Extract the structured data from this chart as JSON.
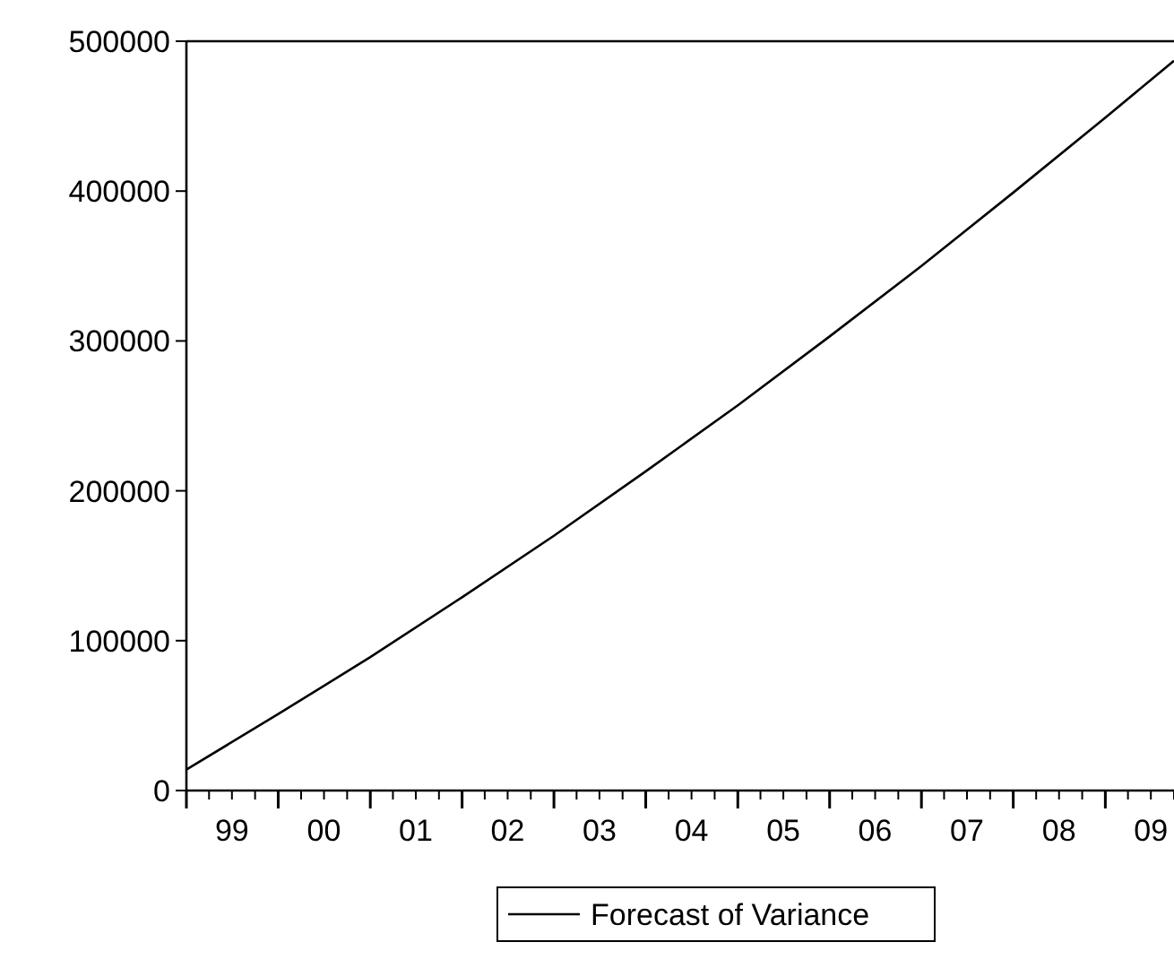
{
  "chart_data": {
    "type": "line",
    "x": [
      "1999-01",
      "2000-01",
      "2001-01",
      "2002-01",
      "2003-01",
      "2004-01",
      "2005-01",
      "2006-01",
      "2007-01",
      "2008-01",
      "2009-01",
      "2009-10"
    ],
    "series": [
      {
        "name": "Forecast of Variance",
        "color": "#000000",
        "values": [
          14000,
          51000,
          89000,
          129000,
          170000,
          213000,
          257000,
          303000,
          350000,
          399000,
          449000,
          487000
        ]
      }
    ],
    "xlim": [
      "1999-01",
      "2009-10"
    ],
    "xticks": [
      {
        "value": "1999-01",
        "label": null
      },
      {
        "value": "1999-07",
        "label": "99"
      },
      {
        "value": "2000-01",
        "label": null
      },
      {
        "value": "2000-07",
        "label": "00"
      },
      {
        "value": "2001-01",
        "label": null
      },
      {
        "value": "2001-07",
        "label": "01"
      },
      {
        "value": "2002-01",
        "label": null
      },
      {
        "value": "2002-07",
        "label": "02"
      },
      {
        "value": "2003-01",
        "label": null
      },
      {
        "value": "2003-07",
        "label": "03"
      },
      {
        "value": "2004-01",
        "label": null
      },
      {
        "value": "2004-07",
        "label": "04"
      },
      {
        "value": "2005-01",
        "label": null
      },
      {
        "value": "2005-07",
        "label": "05"
      },
      {
        "value": "2006-01",
        "label": null
      },
      {
        "value": "2006-07",
        "label": "06"
      },
      {
        "value": "2007-01",
        "label": null
      },
      {
        "value": "2007-07",
        "label": "07"
      },
      {
        "value": "2008-01",
        "label": null
      },
      {
        "value": "2008-07",
        "label": "08"
      },
      {
        "value": "2009-01",
        "label": null
      },
      {
        "value": "2009-07",
        "label": "09"
      }
    ],
    "ylim": [
      0,
      500000
    ],
    "yticks": [
      0,
      100000,
      200000,
      300000,
      400000,
      500000
    ],
    "grid": false,
    "legend": "bottom",
    "marker": "none",
    "line_style": "solid"
  }
}
